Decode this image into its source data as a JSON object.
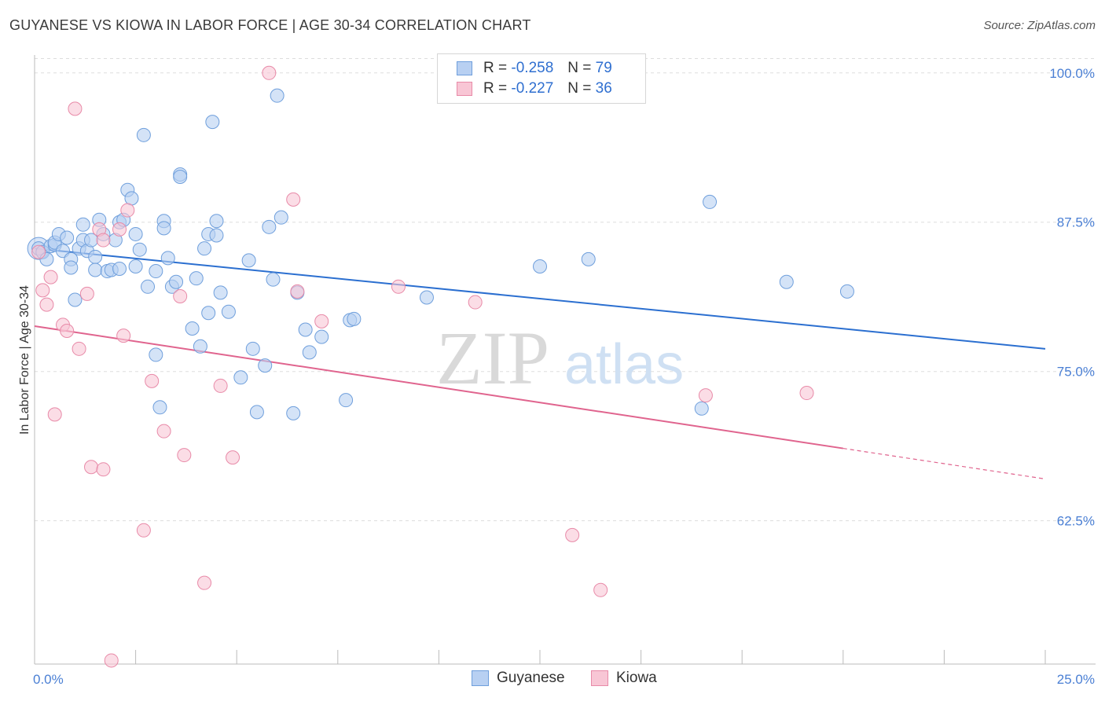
{
  "title": "GUYANESE VS KIOWA IN LABOR FORCE | AGE 30-34 CORRELATION CHART",
  "source": "Source: ZipAtlas.com",
  "watermark": {
    "zip": "ZIP",
    "atlas": "atlas"
  },
  "legend": {
    "rows": [
      {
        "r_label": "R =",
        "r_value": "-0.258",
        "n_label": "N =",
        "n_value": "79"
      },
      {
        "r_label": "R =",
        "r_value": "-0.227",
        "n_label": "N =",
        "n_value": "36"
      }
    ]
  },
  "colors": {
    "guyanese_fill": "#b8d0f2",
    "guyanese_stroke": "#6f9fdc",
    "guyanese_line": "#2b6fd0",
    "kiowa_fill": "#f8c6d5",
    "kiowa_stroke": "#e88aa8",
    "kiowa_line": "#e0648e",
    "tick": "#4a7fd4",
    "grid": "#dddddd"
  },
  "chart_data": {
    "type": "scatter",
    "title": "GUYANESE VS KIOWA IN LABOR FORCE | AGE 30-34 CORRELATION CHART",
    "xlabel": "",
    "ylabel": "In Labor Force | Age 30-34",
    "xlim": [
      0,
      25
    ],
    "ylim": [
      50.5,
      101.5
    ],
    "x_tick_labels": [
      "0.0%",
      "25.0%"
    ],
    "y_ticks": [
      62.5,
      75.0,
      87.5,
      100.0
    ],
    "y_tick_labels": [
      "62.5%",
      "75.0%",
      "87.5%",
      "100.0%"
    ],
    "series": [
      {
        "name": "Guyanese",
        "r": -0.258,
        "n": 79,
        "trend": {
          "x": [
            0,
            25
          ],
          "y": [
            85.3,
            76.9
          ],
          "dashed_from": null
        },
        "points": [
          [
            0.1,
            85.3
          ],
          [
            0.2,
            85.0
          ],
          [
            0.3,
            84.4
          ],
          [
            0.4,
            85.5
          ],
          [
            0.5,
            85.6
          ],
          [
            0.5,
            85.8
          ],
          [
            0.6,
            86.5
          ],
          [
            0.7,
            85.1
          ],
          [
            0.8,
            86.2
          ],
          [
            0.9,
            84.4
          ],
          [
            0.9,
            83.7
          ],
          [
            1.0,
            81.0
          ],
          [
            1.1,
            85.3
          ],
          [
            1.2,
            86.0
          ],
          [
            1.2,
            87.3
          ],
          [
            1.3,
            85.1
          ],
          [
            1.4,
            86.0
          ],
          [
            1.5,
            84.6
          ],
          [
            1.5,
            83.5
          ],
          [
            1.6,
            87.7
          ],
          [
            1.7,
            86.5
          ],
          [
            1.8,
            83.4
          ],
          [
            1.9,
            83.5
          ],
          [
            2.0,
            86.0
          ],
          [
            2.1,
            83.6
          ],
          [
            2.1,
            87.5
          ],
          [
            2.2,
            87.7
          ],
          [
            2.3,
            90.2
          ],
          [
            2.4,
            89.5
          ],
          [
            2.5,
            83.8
          ],
          [
            2.5,
            86.5
          ],
          [
            2.6,
            85.2
          ],
          [
            2.7,
            94.8
          ],
          [
            2.8,
            82.1
          ],
          [
            3.0,
            83.4
          ],
          [
            3.0,
            76.4
          ],
          [
            3.1,
            72.0
          ],
          [
            3.2,
            87.6
          ],
          [
            3.2,
            87.0
          ],
          [
            3.3,
            84.5
          ],
          [
            3.4,
            82.1
          ],
          [
            3.5,
            82.5
          ],
          [
            3.6,
            91.5
          ],
          [
            3.6,
            91.3
          ],
          [
            3.9,
            78.6
          ],
          [
            4.0,
            82.8
          ],
          [
            4.1,
            77.1
          ],
          [
            4.2,
            85.3
          ],
          [
            4.3,
            79.9
          ],
          [
            4.3,
            86.5
          ],
          [
            4.4,
            95.9
          ],
          [
            4.5,
            87.6
          ],
          [
            4.5,
            86.4
          ],
          [
            4.6,
            81.6
          ],
          [
            4.8,
            80.0
          ],
          [
            5.1,
            74.5
          ],
          [
            5.3,
            84.3
          ],
          [
            5.4,
            76.9
          ],
          [
            5.5,
            71.6
          ],
          [
            5.7,
            75.5
          ],
          [
            5.8,
            87.1
          ],
          [
            5.9,
            82.7
          ],
          [
            6.0,
            98.1
          ],
          [
            6.1,
            87.9
          ],
          [
            6.4,
            71.5
          ],
          [
            6.5,
            81.6
          ],
          [
            6.7,
            78.5
          ],
          [
            6.8,
            76.6
          ],
          [
            7.1,
            77.9
          ],
          [
            7.7,
            72.6
          ],
          [
            7.8,
            79.3
          ],
          [
            7.9,
            79.4
          ],
          [
            9.7,
            81.2
          ],
          [
            12.5,
            83.8
          ],
          [
            13.7,
            84.4
          ],
          [
            16.5,
            71.9
          ],
          [
            16.7,
            89.2
          ],
          [
            18.6,
            82.5
          ],
          [
            20.1,
            81.7
          ]
        ]
      },
      {
        "name": "Kiowa",
        "r": -0.227,
        "n": 36,
        "trend": {
          "x": [
            0,
            25
          ],
          "y": [
            78.8,
            66.0
          ],
          "dashed_from": 20.0
        },
        "points": [
          [
            0.1,
            85.0
          ],
          [
            0.2,
            81.8
          ],
          [
            0.3,
            80.6
          ],
          [
            0.4,
            82.9
          ],
          [
            0.5,
            71.4
          ],
          [
            0.7,
            78.9
          ],
          [
            0.8,
            78.4
          ],
          [
            1.0,
            97.0
          ],
          [
            1.1,
            76.9
          ],
          [
            1.3,
            81.5
          ],
          [
            1.4,
            67.0
          ],
          [
            1.6,
            86.9
          ],
          [
            1.7,
            86.0
          ],
          [
            1.7,
            66.8
          ],
          [
            1.9,
            50.8
          ],
          [
            2.1,
            86.9
          ],
          [
            2.2,
            78.0
          ],
          [
            2.3,
            88.5
          ],
          [
            2.7,
            61.7
          ],
          [
            2.9,
            74.2
          ],
          [
            3.2,
            70.0
          ],
          [
            3.6,
            81.3
          ],
          [
            3.7,
            68.0
          ],
          [
            4.2,
            57.3
          ],
          [
            4.6,
            73.8
          ],
          [
            4.9,
            67.8
          ],
          [
            5.8,
            100.0
          ],
          [
            6.4,
            89.4
          ],
          [
            6.5,
            81.7
          ],
          [
            7.1,
            79.2
          ],
          [
            9.0,
            82.1
          ],
          [
            10.9,
            80.8
          ],
          [
            13.3,
            61.3
          ],
          [
            14.0,
            56.7
          ],
          [
            16.6,
            73.0
          ],
          [
            19.1,
            73.2
          ]
        ]
      }
    ]
  },
  "bottom_legend": [
    "Guyanese",
    "Kiowa"
  ]
}
